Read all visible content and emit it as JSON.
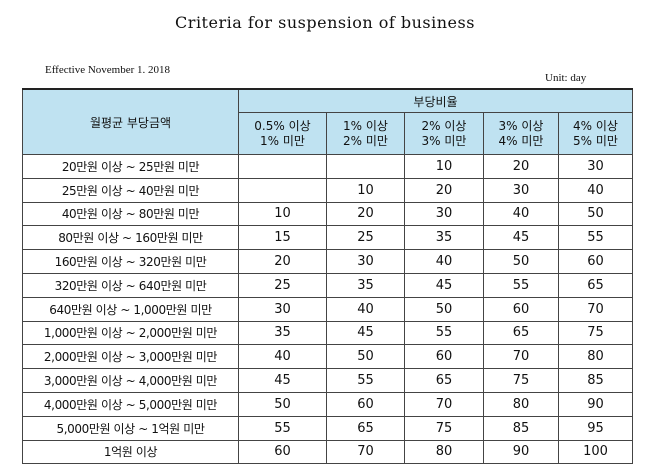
{
  "title": "Criteria for suspension of business",
  "effective": "Effective November 1. 2018",
  "unit": "Unit: day",
  "table": {
    "amount_header": "월평균 부당금액",
    "ratio_header": "부당비율",
    "ratio_columns": [
      {
        "line1": "0.5% 이상",
        "line2": "1% 미만"
      },
      {
        "line1": "1% 이상",
        "line2": "2% 미만"
      },
      {
        "line1": "2% 이상",
        "line2": "3% 미만"
      },
      {
        "line1": "3% 이상",
        "line2": "4% 미만"
      },
      {
        "line1": "4% 이상",
        "line2": "5% 미만"
      }
    ],
    "rows": [
      {
        "amount": "20만원 이상 ~ 25만원 미만",
        "values": [
          "",
          "",
          "10",
          "20",
          "30"
        ]
      },
      {
        "amount": "25만원 이상 ~ 40만원 미만",
        "values": [
          "",
          "10",
          "20",
          "30",
          "40"
        ]
      },
      {
        "amount": "40만원 이상 ~ 80만원 미만",
        "values": [
          "10",
          "20",
          "30",
          "40",
          "50"
        ]
      },
      {
        "amount": "80만원 이상 ~ 160만원 미만",
        "values": [
          "15",
          "25",
          "35",
          "45",
          "55"
        ]
      },
      {
        "amount": "160만원 이상 ~ 320만원 미만",
        "values": [
          "20",
          "30",
          "40",
          "50",
          "60"
        ]
      },
      {
        "amount": "320만원 이상 ~ 640만원 미만",
        "values": [
          "25",
          "35",
          "45",
          "55",
          "65"
        ]
      },
      {
        "amount": "640만원 이상 ~ 1,000만원 미만",
        "values": [
          "30",
          "40",
          "50",
          "60",
          "70"
        ]
      },
      {
        "amount": "1,000만원 이상 ~ 2,000만원 미만",
        "values": [
          "35",
          "45",
          "55",
          "65",
          "75"
        ]
      },
      {
        "amount": "2,000만원 이상 ~ 3,000만원 미만",
        "values": [
          "40",
          "50",
          "60",
          "70",
          "80"
        ]
      },
      {
        "amount": "3,000만원 이상 ~ 4,000만원 미만",
        "values": [
          "45",
          "55",
          "65",
          "75",
          "85"
        ]
      },
      {
        "amount": "4,000만원 이상 ~ 5,000만원 미만",
        "values": [
          "50",
          "60",
          "70",
          "80",
          "90"
        ]
      },
      {
        "amount": "5,000만원 이상 ~ 1억원 미만",
        "values": [
          "55",
          "65",
          "75",
          "85",
          "95"
        ]
      },
      {
        "amount": "1억원 이상",
        "values": [
          "60",
          "70",
          "80",
          "90",
          "100"
        ]
      }
    ]
  }
}
